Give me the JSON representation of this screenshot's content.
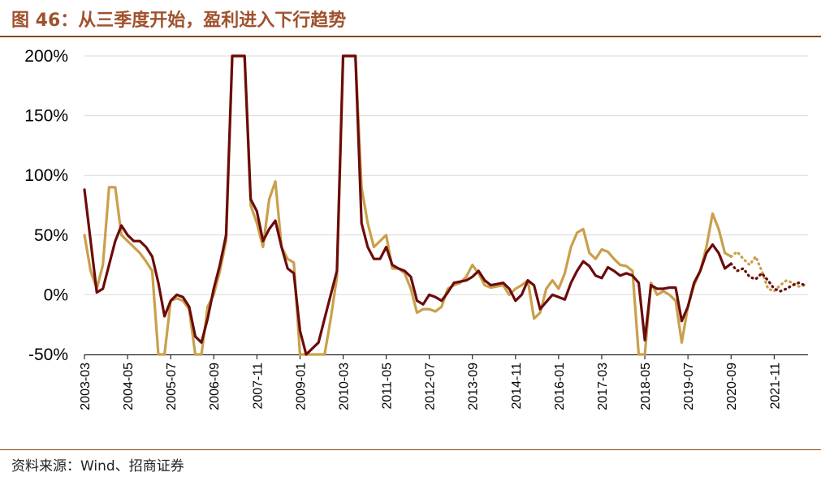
{
  "figure": {
    "title": "图 46：从三季度开始，盈利进入下行趋势",
    "source": "资料来源：Wind、招商证券"
  },
  "chart_data": {
    "type": "line",
    "title": "图 46：从三季度开始，盈利进入下行趋势",
    "xlabel": "",
    "ylabel": "",
    "ylim": [
      -50,
      200
    ],
    "y_ticks": [
      "200%",
      "150%",
      "100%",
      "50%",
      "0%",
      "-50%"
    ],
    "y_tick_values": [
      200,
      150,
      100,
      50,
      0,
      -50
    ],
    "grid": true,
    "x_tick_labels": [
      "2003-03",
      "2004-05",
      "2005-07",
      "2006-09",
      "2007-11",
      "2009-01",
      "2010-03",
      "2011-05",
      "2012-07",
      "2013-09",
      "2014-11",
      "2016-01",
      "2017-03",
      "2018-05",
      "2019-07",
      "2020-09",
      "2021-11"
    ],
    "x_tick_index": [
      0,
      14,
      28,
      42,
      56,
      70,
      84,
      98,
      112,
      126,
      140,
      154,
      168,
      182,
      196,
      210,
      224
    ],
    "n_points": 236,
    "forecast_start_index": 211,
    "series": [
      {
        "color": "#6b0b0b",
        "points": [
          [
            0,
            88
          ],
          [
            2,
            45
          ],
          [
            4,
            2
          ],
          [
            6,
            5
          ],
          [
            8,
            25
          ],
          [
            10,
            45
          ],
          [
            12,
            58
          ],
          [
            14,
            50
          ],
          [
            16,
            45
          ],
          [
            18,
            45
          ],
          [
            20,
            40
          ],
          [
            22,
            32
          ],
          [
            24,
            10
          ],
          [
            26,
            -18
          ],
          [
            28,
            -5
          ],
          [
            30,
            0
          ],
          [
            32,
            -2
          ],
          [
            34,
            -10
          ],
          [
            36,
            -35
          ],
          [
            38,
            -40
          ],
          [
            40,
            -20
          ],
          [
            42,
            5
          ],
          [
            44,
            25
          ],
          [
            46,
            50
          ],
          [
            48,
            200
          ],
          [
            52,
            200
          ],
          [
            54,
            80
          ],
          [
            56,
            70
          ],
          [
            58,
            45
          ],
          [
            60,
            55
          ],
          [
            62,
            62
          ],
          [
            64,
            40
          ],
          [
            66,
            22
          ],
          [
            68,
            18
          ],
          [
            70,
            -30
          ],
          [
            72,
            -50
          ],
          [
            76,
            -40
          ],
          [
            78,
            -20
          ],
          [
            80,
            0
          ],
          [
            82,
            20
          ],
          [
            84,
            200
          ],
          [
            88,
            200
          ],
          [
            90,
            60
          ],
          [
            92,
            40
          ],
          [
            94,
            30
          ],
          [
            96,
            30
          ],
          [
            98,
            40
          ],
          [
            100,
            25
          ],
          [
            102,
            22
          ],
          [
            104,
            20
          ],
          [
            106,
            15
          ],
          [
            108,
            -5
          ],
          [
            110,
            -8
          ],
          [
            112,
            0
          ],
          [
            114,
            -2
          ],
          [
            116,
            -5
          ],
          [
            118,
            2
          ],
          [
            120,
            10
          ],
          [
            122,
            11
          ],
          [
            124,
            12
          ],
          [
            126,
            15
          ],
          [
            128,
            20
          ],
          [
            130,
            12
          ],
          [
            132,
            8
          ],
          [
            134,
            9
          ],
          [
            136,
            10
          ],
          [
            138,
            5
          ],
          [
            140,
            -5
          ],
          [
            142,
            0
          ],
          [
            144,
            12
          ],
          [
            146,
            8
          ],
          [
            148,
            -12
          ],
          [
            150,
            -6
          ],
          [
            152,
            0
          ],
          [
            154,
            -2
          ],
          [
            156,
            -4
          ],
          [
            158,
            10
          ],
          [
            160,
            20
          ],
          [
            162,
            28
          ],
          [
            164,
            24
          ],
          [
            166,
            16
          ],
          [
            168,
            14
          ],
          [
            170,
            23
          ],
          [
            172,
            20
          ],
          [
            174,
            16
          ],
          [
            176,
            18
          ],
          [
            178,
            16
          ],
          [
            180,
            10
          ],
          [
            182,
            -38
          ],
          [
            184,
            8
          ],
          [
            186,
            5
          ],
          [
            188,
            5
          ],
          [
            190,
            6
          ],
          [
            192,
            6
          ],
          [
            194,
            -22
          ],
          [
            196,
            -10
          ],
          [
            198,
            10
          ],
          [
            200,
            20
          ],
          [
            202,
            35
          ],
          [
            204,
            42
          ],
          [
            206,
            35
          ],
          [
            208,
            22
          ],
          [
            210,
            26
          ]
        ],
        "forecast": [
          [
            210,
            26
          ],
          [
            212,
            20
          ],
          [
            214,
            22
          ],
          [
            216,
            15
          ],
          [
            218,
            13
          ],
          [
            220,
            18
          ],
          [
            222,
            12
          ],
          [
            224,
            5
          ],
          [
            226,
            3
          ],
          [
            228,
            5
          ],
          [
            230,
            8
          ],
          [
            232,
            10
          ],
          [
            234,
            8
          ]
        ]
      },
      {
        "color": "#c9a04b",
        "points": [
          [
            0,
            50
          ],
          [
            2,
            20
          ],
          [
            4,
            5
          ],
          [
            6,
            25
          ],
          [
            8,
            90
          ],
          [
            10,
            90
          ],
          [
            12,
            50
          ],
          [
            14,
            45
          ],
          [
            16,
            40
          ],
          [
            18,
            35
          ],
          [
            20,
            28
          ],
          [
            22,
            20
          ],
          [
            24,
            -50
          ],
          [
            26,
            -50
          ],
          [
            28,
            -5
          ],
          [
            30,
            -3
          ],
          [
            32,
            -5
          ],
          [
            34,
            -12
          ],
          [
            36,
            -50
          ],
          [
            38,
            -50
          ],
          [
            40,
            -10
          ],
          [
            42,
            0
          ],
          [
            44,
            20
          ],
          [
            46,
            45
          ],
          [
            48,
            200
          ],
          [
            52,
            200
          ],
          [
            54,
            75
          ],
          [
            56,
            60
          ],
          [
            58,
            40
          ],
          [
            60,
            80
          ],
          [
            62,
            95
          ],
          [
            64,
            40
          ],
          [
            66,
            30
          ],
          [
            68,
            27
          ],
          [
            70,
            -50
          ],
          [
            78,
            -50
          ],
          [
            80,
            -20
          ],
          [
            82,
            15
          ],
          [
            84,
            200
          ],
          [
            88,
            200
          ],
          [
            90,
            90
          ],
          [
            92,
            60
          ],
          [
            94,
            40
          ],
          [
            96,
            45
          ],
          [
            98,
            50
          ],
          [
            100,
            22
          ],
          [
            102,
            22
          ],
          [
            104,
            18
          ],
          [
            106,
            5
          ],
          [
            108,
            -15
          ],
          [
            110,
            -12
          ],
          [
            112,
            -12
          ],
          [
            114,
            -14
          ],
          [
            116,
            -10
          ],
          [
            118,
            5
          ],
          [
            120,
            8
          ],
          [
            122,
            10
          ],
          [
            124,
            15
          ],
          [
            126,
            25
          ],
          [
            128,
            18
          ],
          [
            130,
            8
          ],
          [
            132,
            6
          ],
          [
            134,
            7
          ],
          [
            136,
            8
          ],
          [
            138,
            0
          ],
          [
            140,
            5
          ],
          [
            142,
            8
          ],
          [
            144,
            12
          ],
          [
            146,
            -20
          ],
          [
            148,
            -15
          ],
          [
            150,
            5
          ],
          [
            152,
            12
          ],
          [
            154,
            5
          ],
          [
            156,
            18
          ],
          [
            158,
            40
          ],
          [
            160,
            52
          ],
          [
            162,
            55
          ],
          [
            164,
            35
          ],
          [
            166,
            30
          ],
          [
            168,
            38
          ],
          [
            170,
            36
          ],
          [
            172,
            30
          ],
          [
            174,
            25
          ],
          [
            176,
            24
          ],
          [
            178,
            20
          ],
          [
            180,
            -50
          ],
          [
            182,
            -50
          ],
          [
            184,
            10
          ],
          [
            186,
            0
          ],
          [
            188,
            3
          ],
          [
            190,
            0
          ],
          [
            192,
            -5
          ],
          [
            194,
            -40
          ],
          [
            196,
            -10
          ],
          [
            198,
            8
          ],
          [
            200,
            20
          ],
          [
            202,
            40
          ],
          [
            204,
            68
          ],
          [
            206,
            55
          ],
          [
            208,
            35
          ],
          [
            210,
            32
          ]
        ],
        "forecast": [
          [
            210,
            32
          ],
          [
            212,
            36
          ],
          [
            214,
            30
          ],
          [
            216,
            25
          ],
          [
            218,
            32
          ],
          [
            220,
            20
          ],
          [
            222,
            5
          ],
          [
            224,
            3
          ],
          [
            226,
            8
          ],
          [
            228,
            12
          ],
          [
            230,
            10
          ],
          [
            232,
            7
          ],
          [
            234,
            8
          ]
        ]
      }
    ]
  }
}
